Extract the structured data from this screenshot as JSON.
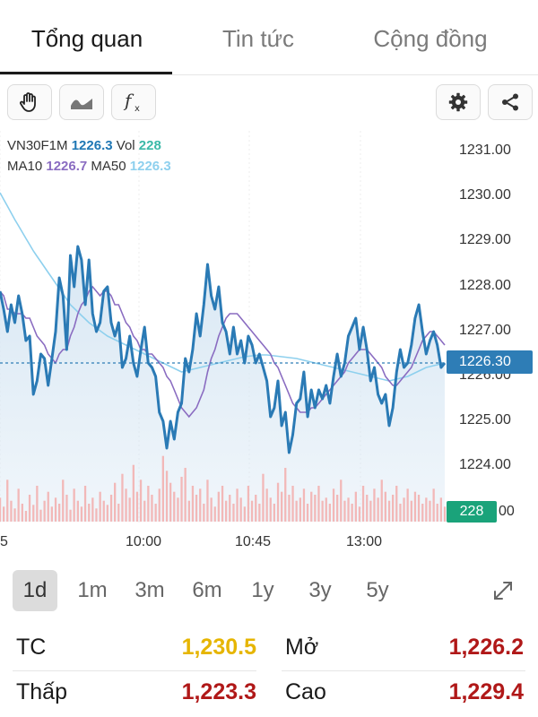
{
  "tabs": [
    {
      "label": "Tổng quan"
    },
    {
      "label": "Tin tức"
    },
    {
      "label": "Cộng đồng"
    }
  ],
  "toolbar": {
    "left_icons": [
      "hand-drag-icon",
      "area-chart-icon",
      "function-icon"
    ],
    "right_icons": [
      "settings-gear-icon",
      "share-icon"
    ]
  },
  "legend": {
    "symbol": "VN30F1M",
    "price": "1226.3",
    "vol_label": "Vol",
    "vol": "228",
    "ma10_label": "MA10",
    "ma10": "1226.7",
    "ma50_label": "MA50",
    "ma50": "1226.3"
  },
  "axis": {
    "y_ticks": [
      "1231.00",
      "1230.00",
      "1229.00",
      "1228.00",
      "1227.00",
      "1226.00",
      "1225.00",
      "1224.00"
    ],
    "x_ticks": [
      "5",
      "10:00",
      "10:45",
      "13:00"
    ],
    "volume_tick": "00",
    "current_price_tag": "1226.30",
    "current_volume_tag": "228"
  },
  "chart_data": {
    "type": "line",
    "ylim": [
      1223.0,
      1231.0
    ],
    "price": [
      1227.9,
      1227.5,
      1227.0,
      1227.6,
      1227.2,
      1227.8,
      1227.4,
      1226.8,
      1226.9,
      1225.6,
      1225.9,
      1226.5,
      1226.4,
      1225.8,
      1226.4,
      1227.0,
      1228.2,
      1227.8,
      1226.6,
      1228.7,
      1228.0,
      1228.9,
      1228.6,
      1227.6,
      1228.6,
      1227.4,
      1227.0,
      1227.2,
      1227.9,
      1228.0,
      1227.2,
      1226.9,
      1227.2,
      1226.2,
      1226.4,
      1226.9,
      1226.3,
      1226.0,
      1226.6,
      1227.1,
      1226.3,
      1226.2,
      1226.0,
      1225.2,
      1225.0,
      1224.4,
      1225.0,
      1224.6,
      1225.2,
      1225.4,
      1226.4,
      1226.1,
      1226.6,
      1227.4,
      1226.9,
      1227.6,
      1228.5,
      1227.8,
      1227.5,
      1228.0,
      1227.2,
      1227.0,
      1226.5,
      1227.1,
      1226.5,
      1226.8,
      1226.3,
      1226.9,
      1226.7,
      1226.3,
      1226.5,
      1226.2,
      1225.9,
      1225.1,
      1225.3,
      1225.9,
      1224.9,
      1225.2,
      1224.3,
      1224.7,
      1225.4,
      1225.5,
      1226.1,
      1225.1,
      1225.7,
      1225.3,
      1225.7,
      1225.5,
      1225.8,
      1225.4,
      1226.0,
      1226.5,
      1226.0,
      1226.3,
      1226.9,
      1227.1,
      1227.3,
      1226.6,
      1227.1,
      1226.6,
      1225.9,
      1226.2,
      1225.6,
      1225.4,
      1225.6,
      1224.9,
      1225.3,
      1226.1,
      1226.6,
      1226.2,
      1226.3,
      1226.7,
      1227.3,
      1227.6,
      1227.0,
      1226.5,
      1226.8,
      1227.0,
      1226.7,
      1226.2,
      1226.3
    ],
    "ma10": [
      1227.9,
      1227.8,
      1227.5,
      1227.5,
      1227.4,
      1227.4,
      1227.4,
      1227.3,
      1227.3,
      1227.1,
      1226.9,
      1226.8,
      1226.7,
      1226.5,
      1226.4,
      1226.3,
      1226.5,
      1226.6,
      1226.6,
      1226.9,
      1227.1,
      1227.4,
      1227.6,
      1227.7,
      1227.9,
      1228.0,
      1227.9,
      1227.8,
      1227.9,
      1227.9,
      1227.8,
      1227.6,
      1227.6,
      1227.4,
      1227.2,
      1227.1,
      1226.9,
      1226.8,
      1226.6,
      1226.6,
      1226.5,
      1226.5,
      1226.4,
      1226.3,
      1226.2,
      1226.0,
      1225.9,
      1225.7,
      1225.5,
      1225.3,
      1225.2,
      1225.1,
      1225.2,
      1225.3,
      1225.5,
      1225.7,
      1226.1,
      1226.4,
      1226.6,
      1226.9,
      1227.1,
      1227.3,
      1227.4,
      1227.4,
      1227.4,
      1227.3,
      1227.2,
      1227.1,
      1227.0,
      1226.9,
      1226.8,
      1226.7,
      1226.6,
      1226.5,
      1226.3,
      1226.2,
      1226.0,
      1225.8,
      1225.6,
      1225.4,
      1225.3,
      1225.2,
      1225.2,
      1225.2,
      1225.3,
      1225.3,
      1225.4,
      1225.5,
      1225.6,
      1225.7,
      1225.8,
      1225.9,
      1226.0,
      1226.1,
      1226.3,
      1226.4,
      1226.5,
      1226.6,
      1226.6,
      1226.6,
      1226.5,
      1226.4,
      1226.3,
      1226.2,
      1226.0,
      1225.9,
      1225.8,
      1225.8,
      1225.9,
      1226.0,
      1226.1,
      1226.2,
      1226.4,
      1226.6,
      1226.8,
      1226.9,
      1227.0,
      1227.0,
      1226.9,
      1226.8,
      1226.7
    ],
    "ma50": [
      1230.1,
      1229.95,
      1229.8,
      1229.65,
      1229.5,
      1229.36,
      1229.22,
      1229.08,
      1228.94,
      1228.8,
      1228.68,
      1228.56,
      1228.44,
      1228.32,
      1228.2,
      1228.08,
      1227.96,
      1227.84,
      1227.72,
      1227.6,
      1227.52,
      1227.44,
      1227.36,
      1227.28,
      1227.2,
      1227.14,
      1227.08,
      1227.02,
      1226.96,
      1226.9,
      1226.86,
      1226.82,
      1226.78,
      1226.74,
      1226.7,
      1226.66,
      1226.62,
      1226.58,
      1226.54,
      1226.5,
      1226.46,
      1226.42,
      1226.38,
      1226.34,
      1226.3,
      1226.26,
      1226.22,
      1226.18,
      1226.14,
      1226.1,
      1226.12,
      1226.14,
      1226.16,
      1226.18,
      1226.2,
      1226.22,
      1226.24,
      1226.26,
      1226.28,
      1226.3,
      1226.32,
      1226.34,
      1226.36,
      1226.38,
      1226.4,
      1226.42,
      1226.44,
      1226.45,
      1226.46,
      1226.47,
      1226.48,
      1226.48,
      1226.48,
      1226.47,
      1226.46,
      1226.45,
      1226.44,
      1226.43,
      1226.42,
      1226.41,
      1226.4,
      1226.38,
      1226.36,
      1226.34,
      1226.32,
      1226.3,
      1226.28,
      1226.26,
      1226.24,
      1226.22,
      1226.2,
      1226.18,
      1226.16,
      1226.14,
      1226.12,
      1226.1,
      1226.08,
      1226.06,
      1226.04,
      1226.02,
      1226.0,
      1225.98,
      1225.96,
      1225.94,
      1225.92,
      1225.9,
      1225.92,
      1225.94,
      1225.96,
      1225.98,
      1226.0,
      1226.04,
      1226.08,
      1226.12,
      1226.16,
      1226.2,
      1226.22,
      1226.24,
      1226.26,
      1226.28,
      1226.3
    ],
    "volume": [
      40,
      25,
      70,
      35,
      22,
      55,
      30,
      18,
      45,
      28,
      60,
      20,
      35,
      50,
      25,
      40,
      30,
      70,
      45,
      20,
      55,
      35,
      25,
      60,
      30,
      40,
      22,
      50,
      35,
      28,
      45,
      65,
      30,
      80,
      55,
      40,
      95,
      50,
      70,
      35,
      60,
      45,
      30,
      55,
      110,
      85,
      65,
      50,
      40,
      75,
      90,
      35,
      60,
      45,
      55,
      30,
      70,
      40,
      25,
      50,
      60,
      35,
      45,
      30,
      55,
      40,
      25,
      60,
      35,
      45,
      30,
      80,
      55,
      40,
      30,
      65,
      50,
      90,
      45,
      60,
      35,
      40,
      55,
      30,
      50,
      45,
      60,
      35,
      40,
      30,
      55,
      45,
      70,
      35,
      40,
      30,
      50,
      25,
      60,
      45,
      35,
      55,
      40,
      70,
      50,
      35,
      45,
      60,
      30,
      40,
      55,
      35,
      50,
      45,
      30,
      40,
      35,
      55,
      30,
      40,
      25
    ],
    "current_price": 1226.3,
    "current_volume": 228
  },
  "ranges": [
    {
      "label": "1d"
    },
    {
      "label": "1m"
    },
    {
      "label": "3m"
    },
    {
      "label": "6m"
    },
    {
      "label": "1y"
    },
    {
      "label": "3y"
    },
    {
      "label": "5y"
    }
  ],
  "stats": {
    "tc_label": "TC",
    "tc_value": "1,230.5",
    "open_label": "Mở",
    "open_value": "1,226.2",
    "low_label": "Thấp",
    "low_value": "1,223.3",
    "high_label": "Cao",
    "high_value": "1,229.4"
  },
  "colors": {
    "price_line": "#2a7ab5",
    "ma10_line": "#8a6cc1",
    "ma50_line": "#8ed0ee",
    "area_fill": "#d6e6f3",
    "volume_bar": "#f2b8b8",
    "tc_value": "#e6b500",
    "red_value": "#b01818",
    "price_tag": "#2e7db6",
    "volume_tag": "#1aa37a"
  }
}
